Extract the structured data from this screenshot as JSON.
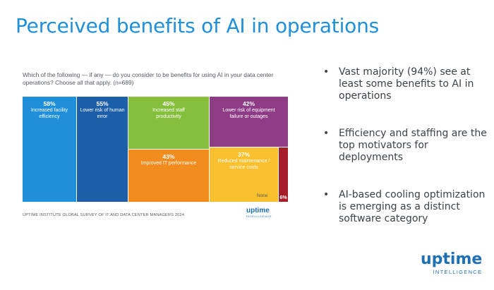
{
  "title": "Perceived benefits of AI in operations",
  "question": "Which of the following — if any — do you consider to be benefits for using AI in your data center operations? Choose all that apply. (n=689)",
  "source": "UPTIME INSTITUTE GLOBAL SURVEY OF IT AND DATA CENTER MANAGERS 2024",
  "logo_small": {
    "word": "uptime",
    "sub": "INTELLIGENCE"
  },
  "logo_big": {
    "word": "uptime",
    "sub": "INTELLIGENCE"
  },
  "bullets": [
    "Vast majority (94%) see at least some benefits to AI in operations",
    "Efficiency and staffing are the top motivators for deployments",
    "AI-based cooling optimization is emerging as a distinct software category"
  ],
  "chart_data": {
    "type": "treemap",
    "unit": "%",
    "items": [
      {
        "label": "Increased facility efficiency",
        "value": 58,
        "display": "58%",
        "color": "#1f8fd9"
      },
      {
        "label": "Lower risk of human error",
        "value": 55,
        "display": "55%",
        "color": "#1c5ea8"
      },
      {
        "label": "Increased staff productivity",
        "value": 45,
        "display": "45%",
        "color": "#86bf3c"
      },
      {
        "label": "Lower risk of equipment failure or outages",
        "value": 42,
        "display": "42%",
        "color": "#8e3c86"
      },
      {
        "label": "Improved IT performance",
        "value": 43,
        "display": "43%",
        "color": "#f28c1e"
      },
      {
        "label": "Reduced maintenance / service costs",
        "value": 37,
        "display": "37%",
        "color": "#fbc02d"
      },
      {
        "label": "None",
        "value": 6,
        "display": "6%",
        "color": "#a51e2a"
      }
    ]
  }
}
